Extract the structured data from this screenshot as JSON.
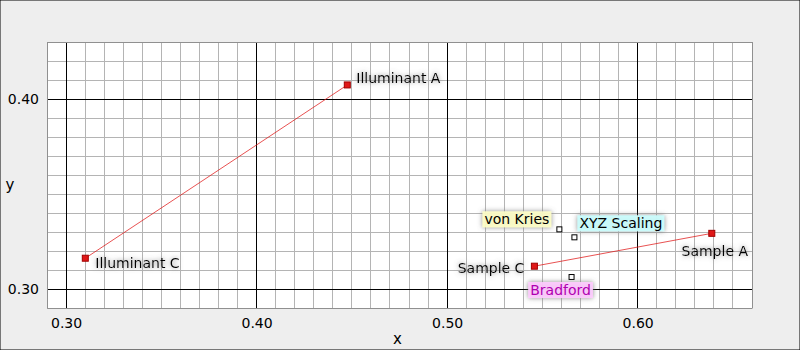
{
  "chart_data": {
    "type": "scatter",
    "x_label": "x",
    "y_label": "y",
    "xlim": [
      0.29,
      0.66
    ],
    "ylim": [
      0.29,
      0.43
    ],
    "xticks": [
      {
        "value": 0.3,
        "label": "0.30"
      },
      {
        "value": 0.4,
        "label": "0.40"
      },
      {
        "value": 0.5,
        "label": "0.50"
      },
      {
        "value": 0.6,
        "label": "0.60"
      }
    ],
    "yticks": [
      {
        "value": 0.3,
        "label": "0.30"
      },
      {
        "value": 0.4,
        "label": "0.40"
      }
    ],
    "xminorticks": [
      0.29,
      0.31,
      0.32,
      0.33,
      0.34,
      0.35,
      0.36,
      0.37,
      0.38,
      0.39,
      0.41,
      0.42,
      0.43,
      0.44,
      0.45,
      0.46,
      0.47,
      0.48,
      0.49,
      0.51,
      0.52,
      0.53,
      0.54,
      0.55,
      0.56,
      0.57,
      0.58,
      0.59,
      0.61,
      0.62,
      0.63,
      0.64,
      0.65,
      0.66
    ],
    "yminorticks": [
      0.29,
      0.31,
      0.32,
      0.33,
      0.34,
      0.35,
      0.36,
      0.37,
      0.38,
      0.39,
      0.41,
      0.42,
      0.43
    ],
    "grid": true,
    "series": [
      {
        "labels": [
          "Illuminant C",
          "Illuminant A"
        ],
        "x": [
          0.3101,
          0.4476
        ],
        "values": [
          0.3162,
          0.4074
        ],
        "color": "#e01818",
        "marker": "square",
        "line_style": "solid"
      },
      {
        "labels": [
          "Sample C",
          "Sample A"
        ],
        "x": [
          0.5458,
          0.6389
        ],
        "values": [
          0.312,
          0.3293
        ],
        "color": "#e01818",
        "marker": "square",
        "line_style": "solid"
      },
      {
        "labels": [
          "von Kries",
          "XYZ Scaling",
          "Bradford"
        ],
        "x": [
          0.5589,
          0.5668,
          0.5653
        ],
        "values": [
          0.3314,
          0.3272,
          0.3063
        ],
        "color": "#000000",
        "marker": "open-square",
        "line_style": "none"
      }
    ]
  }
}
